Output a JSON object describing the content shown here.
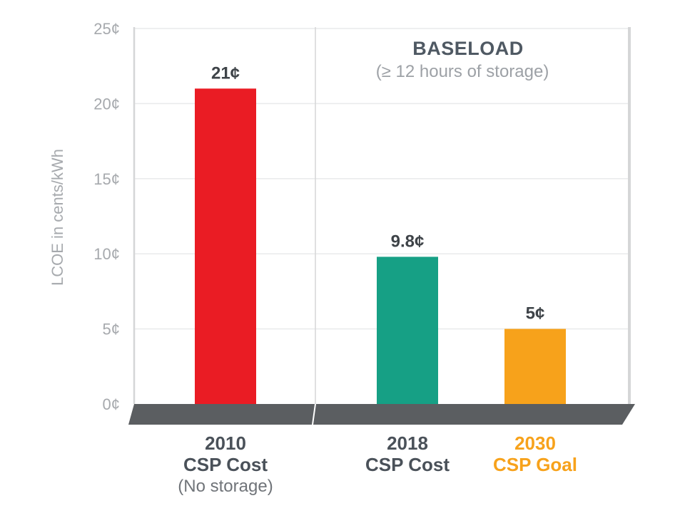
{
  "chart_data": {
    "type": "bar",
    "ylabel": "LCOE in cents/kWh",
    "ylim": [
      0,
      25
    ],
    "yticks": [
      {
        "value": 0,
        "label": "0¢"
      },
      {
        "value": 5,
        "label": "5¢"
      },
      {
        "value": 10,
        "label": "10¢"
      },
      {
        "value": 15,
        "label": "15¢"
      },
      {
        "value": 20,
        "label": "20¢"
      },
      {
        "value": 25,
        "label": "25¢"
      }
    ],
    "grid": true,
    "annotation": {
      "title": "BASELOAD",
      "subtitle": "(≥ 12 hours of storage)"
    },
    "bars": [
      {
        "year": "2010",
        "label": "CSP Cost",
        "sublabel": "(No storage)",
        "value": 21,
        "value_label": "21¢",
        "color": "#ea1c24",
        "label_color": "#4a5159"
      },
      {
        "year": "2018",
        "label": "CSP Cost",
        "sublabel": "",
        "value": 9.8,
        "value_label": "9.8¢",
        "color": "#16a085",
        "label_color": "#4a5159"
      },
      {
        "year": "2030",
        "label": "CSP Goal",
        "sublabel": "",
        "value": 5,
        "value_label": "5¢",
        "color": "#f7a21b",
        "label_color": "#f7a21b"
      }
    ],
    "colors": {
      "axis": "#5b5e61",
      "grid": "#e9eaeb",
      "frame": "#d5d6d7"
    }
  }
}
